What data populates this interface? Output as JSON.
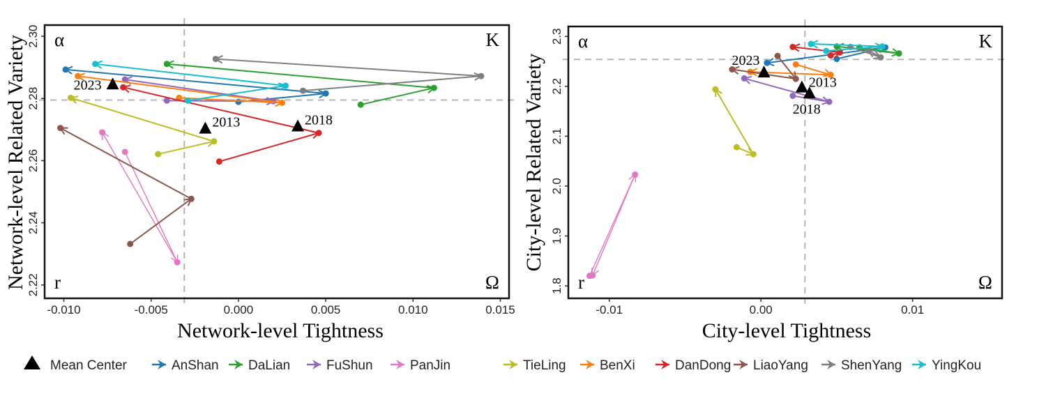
{
  "legend": {
    "mean_center_label": "Mean Center",
    "items": [
      {
        "name": "AnShan",
        "color": "#1f77b4"
      },
      {
        "name": "DaLian",
        "color": "#2ca02c"
      },
      {
        "name": "FuShun",
        "color": "#9467bd"
      },
      {
        "name": "PanJin",
        "color": "#e377c2"
      },
      {
        "name": "TieLing",
        "color": "#bcbd22"
      },
      {
        "name": "BenXi",
        "color": "#ff7f0e"
      },
      {
        "name": "DanDong",
        "color": "#d62728"
      },
      {
        "name": "LiaoYang",
        "color": "#8c564b"
      },
      {
        "name": "ShenYang",
        "color": "#7f7f7f"
      },
      {
        "name": "YingKou",
        "color": "#17becf"
      }
    ]
  },
  "chart_data": [
    {
      "type": "scatter",
      "subtype": "trajectory-arrows",
      "title": "",
      "xlabel": "Network-level Tightness",
      "ylabel": "Network-level Related Variety",
      "xlim": [
        -0.0111,
        0.0155
      ],
      "ylim": [
        2.2157,
        2.3036
      ],
      "xticks": [
        -0.01,
        -0.005,
        0.0,
        0.005,
        0.01,
        0.015
      ],
      "xtick_labels": [
        "-0.010",
        "-0.005",
        "0.000",
        "0.005",
        "0.010",
        "0.015"
      ],
      "yticks": [
        2.22,
        2.24,
        2.26,
        2.28,
        2.3
      ],
      "ytick_labels": [
        "2.22",
        "2.24",
        "2.26",
        "2.28",
        "2.30"
      ],
      "grid": false,
      "reference_lines": {
        "x": -0.0031,
        "y": 2.2795
      },
      "quadrant_labels": {
        "top_left": "α",
        "top_right": "K",
        "bottom_left": "r",
        "bottom_right": "Ω"
      },
      "years": [
        "2013",
        "2018",
        "2023"
      ],
      "series": [
        {
          "name": "AnShan",
          "x": [
            0.0,
            0.005,
            -0.0099
          ],
          "y": [
            2.2789,
            2.2816,
            2.2893
          ]
        },
        {
          "name": "DaLian",
          "x": [
            0.007,
            0.0112,
            -0.0041
          ],
          "y": [
            2.278,
            2.2834,
            2.2911
          ]
        },
        {
          "name": "FuShun",
          "x": [
            -0.0041,
            0.002,
            -0.0065
          ],
          "y": [
            2.2793,
            2.2791,
            2.2861
          ]
        },
        {
          "name": "PanJin",
          "x": [
            -0.0065,
            -0.0035,
            -0.0078
          ],
          "y": [
            2.2628,
            2.2273,
            2.2691
          ]
        },
        {
          "name": "TieLing",
          "x": [
            -0.0046,
            -0.0014,
            -0.0096
          ],
          "y": [
            2.2621,
            2.2662,
            2.2802
          ]
        },
        {
          "name": "BenXi",
          "x": [
            -0.0034,
            0.0025,
            -0.0092
          ],
          "y": [
            2.2802,
            2.2786,
            2.2872
          ]
        },
        {
          "name": "DanDong",
          "x": [
            -0.0011,
            0.0046,
            -0.0066
          ],
          "y": [
            2.2597,
            2.2689,
            2.2836
          ]
        },
        {
          "name": "LiaoYang",
          "x": [
            -0.0062,
            -0.0027,
            -0.0102
          ],
          "y": [
            2.2332,
            2.2477,
            2.2705
          ]
        },
        {
          "name": "ShenYang",
          "x": [
            0.0037,
            0.0139,
            -0.0013
          ],
          "y": [
            2.2825,
            2.2872,
            2.2927
          ]
        },
        {
          "name": "YingKou",
          "x": [
            -0.0029,
            0.0027,
            -0.0082
          ],
          "y": [
            2.2793,
            2.2841,
            2.2911
          ]
        }
      ],
      "mean_center": {
        "labels": [
          "2013",
          "2018",
          "2023"
        ],
        "x": [
          -0.0019,
          0.0034,
          -0.0072
        ],
        "y": [
          2.2705,
          2.2712,
          2.2847
        ]
      }
    },
    {
      "type": "scatter",
      "subtype": "trajectory-arrows",
      "title": "",
      "xlabel": "City-level Tightness",
      "ylabel": "City-level Related Variety",
      "xlim": [
        -0.0127,
        0.0159
      ],
      "ylim": [
        1.775,
        2.32
      ],
      "xticks": [
        -0.01,
        0.0,
        0.01
      ],
      "xtick_labels": [
        "-0.01",
        "0.00",
        "0.01"
      ],
      "yticks": [
        1.8,
        1.9,
        2.0,
        2.1,
        2.2,
        2.3
      ],
      "ytick_labels": [
        "1.8",
        "1.9",
        "2.0",
        "2.1",
        "2.2",
        "2.3"
      ],
      "grid": false,
      "reference_lines": {
        "x": 0.0029,
        "y": 2.254
      },
      "quadrant_labels": {
        "top_left": "α",
        "top_right": "K",
        "bottom_left": "r",
        "bottom_right": "Ω"
      },
      "years": [
        "2013",
        "2018",
        "2023"
      ],
      "series": [
        {
          "name": "AnShan",
          "x": [
            0.005,
            0.0082,
            0.0004
          ],
          "y": [
            2.255,
            2.278,
            2.247
          ]
        },
        {
          "name": "DaLian",
          "x": [
            0.0065,
            0.0091,
            0.005
          ],
          "y": [
            2.278,
            2.266,
            2.28
          ]
        },
        {
          "name": "FuShun",
          "x": [
            0.0021,
            0.0045,
            -0.0011
          ],
          "y": [
            2.181,
            2.169,
            2.216
          ]
        },
        {
          "name": "PanJin",
          "x": [
            -0.0113,
            -0.0083,
            -0.0111
          ],
          "y": [
            1.82,
            2.023,
            1.821
          ]
        },
        {
          "name": "TieLing",
          "x": [
            -0.0016,
            -0.0005,
            -0.003
          ],
          "y": [
            2.078,
            2.064,
            2.194
          ]
        },
        {
          "name": "BenXi",
          "x": [
            0.0023,
            0.0046,
            -0.0007
          ],
          "y": [
            2.244,
            2.223,
            2.229
          ]
        },
        {
          "name": "DanDong",
          "x": [
            0.0046,
            0.0052,
            0.0021
          ],
          "y": [
            2.262,
            2.268,
            2.279
          ]
        },
        {
          "name": "LiaoYang",
          "x": [
            0.0011,
            0.0023,
            -0.0019
          ],
          "y": [
            2.261,
            2.215,
            2.234
          ]
        },
        {
          "name": "ShenYang",
          "x": [
            0.0059,
            0.0079,
            0.0071
          ],
          "y": [
            2.279,
            2.258,
            2.272
          ]
        },
        {
          "name": "YingKou",
          "x": [
            0.0043,
            0.008,
            0.0033
          ],
          "y": [
            2.271,
            2.28,
            2.285
          ]
        }
      ],
      "mean_center": {
        "labels": [
          "2013",
          "2018",
          "2023"
        ],
        "x": [
          0.0027,
          0.0032,
          0.0002
        ],
        "y": [
          2.199,
          2.187,
          2.229
        ]
      }
    }
  ]
}
